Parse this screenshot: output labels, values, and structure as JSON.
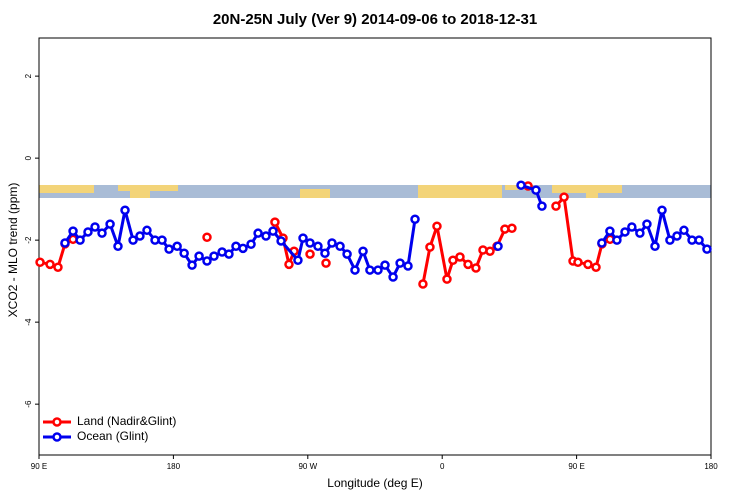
{
  "chart_data": {
    "type": "line",
    "title": "20N-25N July (Ver 9)   2014-09-06 to 2018-12-31",
    "x_label": "Longitude (deg E)",
    "y_label": "XCO2 - MLO trend (ppm)",
    "xlim": [
      90,
      540
    ],
    "xticks": [
      {
        "value": 90,
        "label": "90 E"
      },
      180,
      {
        "value": 270,
        "label": "90 W"
      },
      {
        "value": 360,
        "label": "0"
      },
      {
        "value": 450,
        "label": "90 E"
      },
      {
        "value": 540,
        "label": "180"
      }
    ],
    "ylim": [
      -7.24,
      2.93
    ],
    "yticks": [
      -6,
      -4,
      -2,
      0,
      2
    ],
    "legend": "bottom-left",
    "series": [
      {
        "name": "Land (Nadir&Glint)",
        "color": "#ff0000",
        "x": [
          90.7,
          97.4,
          102.7,
          107.4,
          112.8,
          null,
          202.5,
          null,
          248,
          253.4,
          257.4,
          260.8,
          null,
          271.5,
          null,
          282.2,
          null,
          347.1,
          351.8,
          356.5,
          363.2,
          367.2,
          371.9,
          377.3,
          382.6,
          387.3,
          392,
          396.7,
          402,
          406.7,
          null,
          417.5,
          null,
          436.2,
          441.6,
          447.6,
          450.9,
          457.6,
          463,
          467,
          472.4
        ],
        "values": [
          -2.54,
          -2.59,
          -2.66,
          -2.09,
          -1.98,
          null,
          -1.93,
          null,
          -1.56,
          -1.95,
          -2.59,
          -2.27,
          null,
          -2.34,
          null,
          -2.56,
          null,
          -3.07,
          -2.17,
          -1.66,
          -2.95,
          -2.49,
          -2.41,
          -2.59,
          -2.68,
          -2.24,
          -2.27,
          -2.15,
          -1.73,
          -1.71,
          null,
          -0.68,
          null,
          -1.17,
          -0.95,
          -2.51,
          -2.54,
          -2.59,
          -2.66,
          -2.09,
          -1.98
        ]
      },
      {
        "name": "Ocean (Glint)",
        "color": "#0000ee",
        "x": [
          107.4,
          112.8,
          117.5,
          122.8,
          127.5,
          132.2,
          137.6,
          142.9,
          147.6,
          153,
          157.6,
          162.3,
          167.7,
          172.4,
          177.1,
          182.5,
          187.2,
          192.5,
          197.2,
          202.5,
          207.2,
          212.6,
          217.2,
          221.9,
          226.6,
          232,
          236.7,
          242,
          246.7,
          252.1,
          263.4,
          266.8,
          271.5,
          276.8,
          281.5,
          286.2,
          291.6,
          296.3,
          301.6,
          307,
          311.6,
          317,
          321.7,
          327.1,
          331.8,
          337.1,
          341.8,
          null,
          397.4,
          null,
          412.8,
          422.8,
          426.8,
          null,
          466.9,
          472.3,
          477,
          482.4,
          487,
          492.4,
          497.1,
          502.5,
          507.2,
          512.5,
          517.2,
          521.9,
          527.3,
          532,
          537.3
        ],
        "values": [
          -2.07,
          -1.78,
          -2.0,
          -1.8,
          -1.68,
          -1.83,
          -1.61,
          -2.15,
          -1.27,
          -2.0,
          -1.9,
          -1.76,
          -2.0,
          -2.0,
          -2.22,
          -2.15,
          -2.32,
          -2.61,
          -2.39,
          -2.51,
          -2.39,
          -2.29,
          -2.34,
          -2.15,
          -2.2,
          -2.1,
          -1.83,
          -1.9,
          -1.78,
          -2.02,
          -2.49,
          -1.95,
          -2.07,
          -2.15,
          -2.32,
          -2.07,
          -2.15,
          -2.34,
          -2.73,
          -2.27,
          -2.73,
          -2.73,
          -2.61,
          -2.9,
          -2.56,
          -2.63,
          -1.49,
          null,
          -2.15,
          null,
          -0.66,
          -0.78,
          -1.17,
          null,
          -2.07,
          -1.78,
          -2.0,
          -1.8,
          -1.68,
          -1.83,
          -1.61,
          -2.15,
          -1.27,
          -2.0,
          -1.9,
          -1.76,
          -2.0,
          -2.0,
          -2.22
        ]
      }
    ]
  }
}
